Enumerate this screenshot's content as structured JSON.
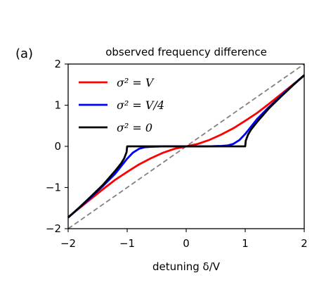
{
  "panel_label": "(a)",
  "chart_data": {
    "type": "line",
    "title": "observed frequency difference",
    "xlabel": "detuning δ/V",
    "ylabel": "",
    "xlim": [
      -2,
      2
    ],
    "ylim": [
      -2,
      2
    ],
    "xticks": [
      -2,
      -1,
      0,
      1,
      2
    ],
    "yticks": [
      -2,
      -1,
      0,
      1,
      2
    ],
    "tick_labels": [
      "−2",
      "−1",
      "0",
      "1",
      "2"
    ],
    "grid": false,
    "legend_position": "top-left",
    "series": [
      {
        "name": "σ² = V",
        "color": "#ff0000",
        "x": [
          -2,
          -1.8,
          -1.6,
          -1.4,
          -1.2,
          -1.0,
          -0.8,
          -0.6,
          -0.4,
          -0.2,
          0,
          0.2,
          0.4,
          0.6,
          0.8,
          1.0,
          1.2,
          1.4,
          1.6,
          1.8,
          2
        ],
        "y": [
          -1.72,
          -1.49,
          -1.26,
          -1.03,
          -0.81,
          -0.62,
          -0.44,
          -0.29,
          -0.16,
          -0.06,
          0,
          0.06,
          0.16,
          0.29,
          0.44,
          0.62,
          0.81,
          1.03,
          1.26,
          1.49,
          1.72
        ]
      },
      {
        "name": "σ² = V/4",
        "color": "#0000ff",
        "x": [
          -2,
          -1.8,
          -1.6,
          -1.4,
          -1.2,
          -1.0,
          -0.9,
          -0.8,
          -0.7,
          -0.6,
          -0.5,
          -0.4,
          -0.2,
          0,
          0.2,
          0.4,
          0.5,
          0.6,
          0.7,
          0.8,
          0.9,
          1.0,
          1.2,
          1.4,
          1.6,
          1.8,
          2
        ],
        "y": [
          -1.73,
          -1.48,
          -1.22,
          -0.95,
          -0.66,
          -0.3,
          -0.15,
          -0.06,
          -0.02,
          -0.01,
          -0.005,
          0,
          0,
          0,
          0,
          0,
          0.005,
          0.01,
          0.02,
          0.06,
          0.15,
          0.3,
          0.66,
          0.95,
          1.22,
          1.48,
          1.73
        ]
      },
      {
        "name": "σ² = 0",
        "color": "#000000",
        "x": [
          -2,
          -1.8,
          -1.6,
          -1.4,
          -1.2,
          -1.1,
          -1.05,
          -1.01,
          -1.0,
          1.0,
          1.01,
          1.05,
          1.1,
          1.2,
          1.4,
          1.6,
          1.8,
          2
        ],
        "y": [
          -1.73,
          -1.47,
          -1.2,
          -0.92,
          -0.59,
          -0.41,
          -0.29,
          -0.14,
          0,
          0,
          0.14,
          0.29,
          0.41,
          0.59,
          0.92,
          1.2,
          1.47,
          1.73
        ]
      },
      {
        "name": "",
        "color": "#808080",
        "dashed": true,
        "x": [
          -2,
          2
        ],
        "y": [
          -2,
          2
        ]
      }
    ]
  }
}
